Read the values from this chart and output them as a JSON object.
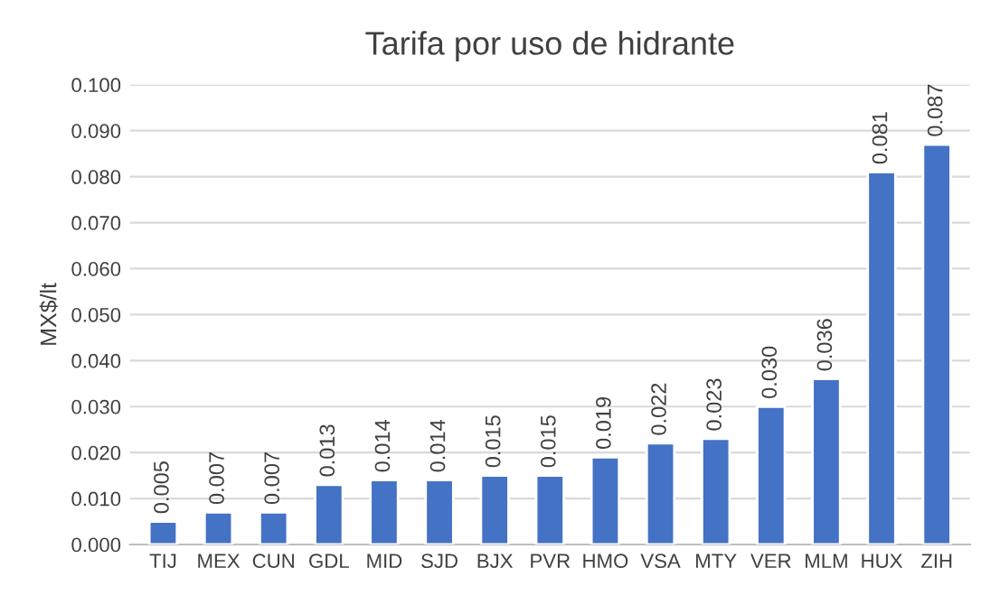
{
  "chart_data": {
    "type": "bar",
    "title": "Tarifa por uso de hidrante",
    "ylabel": "MX$/lt",
    "categories": [
      "TIJ",
      "MEX",
      "CUN",
      "GDL",
      "MID",
      "SJD",
      "BJX",
      "PVR",
      "HMO",
      "VSA",
      "MTY",
      "VER",
      "MLM",
      "HUX",
      "ZIH"
    ],
    "values": [
      0.005,
      0.007,
      0.007,
      0.013,
      0.014,
      0.014,
      0.015,
      0.015,
      0.019,
      0.022,
      0.023,
      0.03,
      0.036,
      0.081,
      0.087
    ],
    "value_labels": [
      "0.005",
      "0.007",
      "0.007",
      "0.013",
      "0.014",
      "0.014",
      "0.015",
      "0.015",
      "0.019",
      "0.022",
      "0.023",
      "0.030",
      "0.036",
      "0.081",
      "0.087"
    ],
    "color": "#4472c4",
    "ylim": [
      0,
      0.1
    ],
    "yticks": [
      {
        "value": 0,
        "label": "0.000"
      },
      {
        "value": 0.01,
        "label": "0.010"
      },
      {
        "value": 0.02,
        "label": "0.020"
      },
      {
        "value": 0.03,
        "label": "0.030"
      },
      {
        "value": 0.04,
        "label": "0.040"
      },
      {
        "value": 0.05,
        "label": "0.050"
      },
      {
        "value": 0.06,
        "label": "0.060"
      },
      {
        "value": 0.07,
        "label": "0.070"
      },
      {
        "value": 0.08,
        "label": "0.080"
      },
      {
        "value": 0.09,
        "label": "0.090"
      },
      {
        "value": 0.1,
        "label": "0.100"
      }
    ],
    "grid": "y",
    "legend": false
  }
}
